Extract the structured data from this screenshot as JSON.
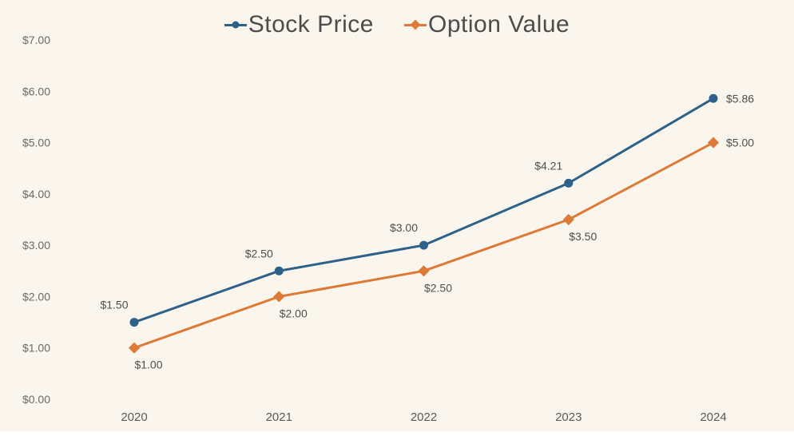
{
  "chart_data": {
    "type": "line",
    "title": "",
    "categories": [
      "2020",
      "2021",
      "2022",
      "2023",
      "2024"
    ],
    "series": [
      {
        "name": "Stock Price",
        "color": "#2e6189",
        "marker": "circle",
        "values": [
          1.5,
          2.5,
          3.0,
          4.21,
          5.86
        ],
        "point_labels": [
          "$1.50",
          "$2.50",
          "$3.00",
          "$4.21",
          "$5.86"
        ],
        "label_positions": [
          "above-left",
          "above-left",
          "above-left",
          "above-left",
          "right"
        ]
      },
      {
        "name": "Option Value",
        "color": "#de7a35",
        "marker": "diamond",
        "values": [
          1.0,
          2.0,
          2.5,
          3.5,
          5.0
        ],
        "point_labels": [
          "$1.00",
          "$2.00",
          "$2.50",
          "$3.50",
          "$5.00"
        ],
        "label_positions": [
          "below-right",
          "below-right",
          "below-right",
          "below-right",
          "right"
        ]
      }
    ],
    "xlabel": "",
    "ylabel": "",
    "ylim": [
      0,
      7
    ],
    "ytick_step": 1,
    "ytick_labels": [
      "$0.00",
      "$1.00",
      "$2.00",
      "$3.00",
      "$4.00",
      "$5.00",
      "$6.00",
      "$7.00"
    ],
    "grid": false,
    "legend_position": "top-center",
    "background_color": "#faf6ed",
    "tick_label_color": "#6b6b6b",
    "data_label_color": "#4f4f4f",
    "legend_text_color": "#4c4c4c"
  }
}
